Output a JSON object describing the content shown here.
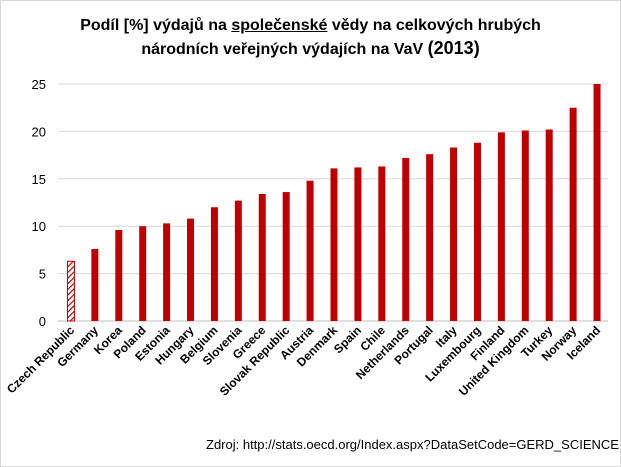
{
  "title": {
    "line1_a": "Podíl [%] výdajů na ",
    "line1_underlined": "společenské",
    "line1_b": " vědy na celkových hrubých",
    "line2_a": "národních veřejných výdajích na VaV ",
    "line2_year": "(2013)"
  },
  "source": "Zdroj: http://stats.oecd.org/Index.aspx?DataSetCode=GERD_SCIENCE",
  "colors": {
    "bar": "#c00000",
    "highlight_stripe": "#c00000",
    "grid": "#d9d9d9",
    "axis_text": "#000000"
  },
  "chart_data": {
    "type": "bar",
    "title": "Podíl [%] výdajů na společenské vědy na celkových hrubých národních veřejných výdajích na VaV (2013)",
    "xlabel": "",
    "ylabel": "",
    "ylim": [
      0,
      25
    ],
    "yticks": [
      0,
      5,
      10,
      15,
      20,
      25
    ],
    "grid": true,
    "highlight_category": "Czech Republic",
    "categories": [
      "Czech Republic",
      "Germany",
      "Korea",
      "Poland",
      "Estonia",
      "Hungary",
      "Belgium",
      "Slovenia",
      "Greece",
      "Slovak Republic",
      "Austria",
      "Denmark",
      "Spain",
      "Chile",
      "Netherlands",
      "Portugal",
      "Italy",
      "Luxembourg",
      "Finland",
      "United Kingdom",
      "Turkey",
      "Norway",
      "Iceland"
    ],
    "values": [
      6.3,
      7.6,
      9.6,
      10.0,
      10.3,
      10.8,
      12.0,
      12.7,
      13.4,
      13.6,
      14.8,
      16.1,
      16.2,
      16.3,
      17.2,
      17.6,
      18.3,
      18.8,
      19.9,
      20.1,
      20.2,
      22.5,
      25.0
    ]
  }
}
